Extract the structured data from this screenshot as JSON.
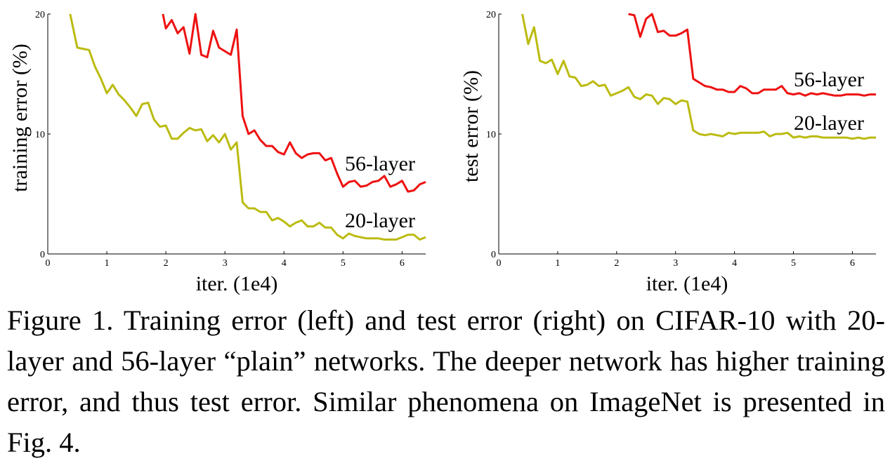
{
  "caption": "Figure 1. Training error (left) and test error (right) on CIFAR-10 with 20-layer and 56-layer “plain” networks. The deeper network has higher training error, and thus test error. Similar phenomena on ImageNet is presented in Fig. 4.",
  "colors": {
    "layer56": "#ee1111",
    "layer20": "#bbbb11"
  },
  "chart_data": [
    {
      "type": "line",
      "title": "",
      "xlabel": "iter. (1e4)",
      "ylabel": "training error (%)",
      "xlim": [
        0,
        6.4
      ],
      "ylim": [
        0,
        20
      ],
      "xticks": [
        "0",
        "1",
        "2",
        "3",
        "4",
        "5",
        "6"
      ],
      "yticks": [
        "0",
        "10",
        "20"
      ],
      "grid": false,
      "legend": "inline labels next to curves",
      "series": [
        {
          "name": "56-layer",
          "color": "#ee1111",
          "x": [
            1.95,
            2.0,
            2.1,
            2.2,
            2.3,
            2.4,
            2.5,
            2.6,
            2.7,
            2.8,
            2.9,
            3.0,
            3.1,
            3.2,
            3.3,
            3.4,
            3.5,
            3.6,
            3.7,
            3.8,
            3.9,
            4.0,
            4.1,
            4.2,
            4.3,
            4.4,
            4.5,
            4.6,
            4.7,
            4.8,
            4.9,
            5.0,
            5.1,
            5.2,
            5.3,
            5.4,
            5.5,
            5.6,
            5.7,
            5.8,
            5.9,
            6.0,
            6.1,
            6.2,
            6.3,
            6.4
          ],
          "y": [
            20.0,
            18.8,
            19.5,
            18.4,
            18.9,
            16.7,
            20.0,
            16.6,
            16.4,
            18.6,
            17.2,
            16.9,
            16.6,
            18.7,
            11.5,
            10.0,
            10.3,
            9.5,
            9.0,
            9.0,
            8.5,
            8.3,
            9.3,
            8.4,
            8.0,
            8.3,
            8.4,
            8.4,
            7.8,
            8.0,
            6.7,
            5.6,
            6.0,
            6.1,
            5.6,
            5.7,
            6.0,
            6.1,
            6.5,
            5.6,
            5.8,
            6.1,
            5.2,
            5.3,
            5.8,
            6.0
          ]
        },
        {
          "name": "20-layer",
          "color": "#bbbb11",
          "x": [
            0.38,
            0.5,
            0.6,
            0.7,
            0.8,
            0.9,
            1.0,
            1.1,
            1.2,
            1.3,
            1.4,
            1.5,
            1.6,
            1.7,
            1.8,
            1.9,
            2.0,
            2.1,
            2.2,
            2.3,
            2.4,
            2.5,
            2.6,
            2.7,
            2.8,
            2.9,
            3.0,
            3.1,
            3.2,
            3.3,
            3.4,
            3.5,
            3.6,
            3.7,
            3.8,
            3.9,
            4.0,
            4.1,
            4.2,
            4.3,
            4.4,
            4.5,
            4.6,
            4.7,
            4.8,
            4.9,
            5.0,
            5.1,
            5.2,
            5.3,
            5.4,
            5.5,
            5.6,
            5.7,
            5.8,
            5.9,
            6.0,
            6.1,
            6.2,
            6.3,
            6.4
          ],
          "y": [
            20.0,
            17.2,
            17.1,
            17.0,
            15.6,
            14.6,
            13.4,
            14.1,
            13.3,
            12.8,
            12.2,
            11.5,
            12.5,
            12.6,
            11.2,
            10.6,
            10.7,
            9.6,
            9.6,
            10.1,
            10.5,
            10.3,
            10.4,
            9.4,
            9.9,
            9.3,
            10.0,
            8.7,
            9.3,
            4.3,
            3.8,
            3.8,
            3.5,
            3.5,
            2.8,
            3.0,
            2.7,
            2.3,
            2.6,
            2.8,
            2.3,
            2.3,
            2.6,
            2.2,
            2.2,
            1.6,
            1.3,
            1.7,
            1.5,
            1.4,
            1.3,
            1.3,
            1.3,
            1.2,
            1.2,
            1.2,
            1.4,
            1.6,
            1.6,
            1.2,
            1.4
          ]
        }
      ]
    },
    {
      "type": "line",
      "title": "",
      "xlabel": "iter. (1e4)",
      "ylabel": "test error (%)",
      "xlim": [
        0,
        6.4
      ],
      "ylim": [
        0,
        20
      ],
      "xticks": [
        "0",
        "1",
        "2",
        "3",
        "4",
        "5",
        "6"
      ],
      "yticks": [
        "0",
        "10",
        "20"
      ],
      "grid": false,
      "legend": "inline labels next to curves",
      "series": [
        {
          "name": "56-layer",
          "color": "#ee1111",
          "x": [
            2.2,
            2.3,
            2.4,
            2.5,
            2.6,
            2.7,
            2.8,
            2.9,
            3.0,
            3.1,
            3.2,
            3.3,
            3.4,
            3.5,
            3.6,
            3.7,
            3.8,
            3.9,
            4.0,
            4.1,
            4.2,
            4.3,
            4.4,
            4.5,
            4.6,
            4.7,
            4.8,
            4.9,
            5.0,
            5.1,
            5.2,
            5.3,
            5.4,
            5.5,
            5.6,
            5.7,
            5.8,
            5.9,
            6.0,
            6.1,
            6.2,
            6.3,
            6.4
          ],
          "y": [
            20.0,
            19.9,
            18.1,
            19.6,
            20.0,
            18.5,
            18.6,
            18.2,
            18.2,
            18.4,
            18.7,
            14.6,
            14.3,
            14.0,
            13.9,
            13.7,
            13.7,
            13.5,
            13.5,
            14.0,
            13.8,
            13.4,
            13.4,
            13.7,
            13.7,
            13.7,
            14.0,
            13.4,
            13.3,
            13.4,
            13.2,
            13.4,
            13.3,
            13.4,
            13.3,
            13.2,
            13.2,
            13.3,
            13.3,
            13.3,
            13.2,
            13.3,
            13.3
          ]
        },
        {
          "name": "20-layer",
          "color": "#bbbb11",
          "x": [
            0.4,
            0.5,
            0.6,
            0.7,
            0.8,
            0.9,
            1.0,
            1.1,
            1.2,
            1.3,
            1.4,
            1.5,
            1.6,
            1.7,
            1.8,
            1.9,
            2.0,
            2.1,
            2.2,
            2.3,
            2.4,
            2.5,
            2.6,
            2.7,
            2.8,
            2.9,
            3.0,
            3.1,
            3.2,
            3.3,
            3.4,
            3.5,
            3.6,
            3.7,
            3.8,
            3.9,
            4.0,
            4.1,
            4.2,
            4.3,
            4.4,
            4.5,
            4.6,
            4.7,
            4.8,
            4.9,
            5.0,
            5.1,
            5.2,
            5.3,
            5.4,
            5.5,
            5.6,
            5.7,
            5.8,
            5.9,
            6.0,
            6.1,
            6.2,
            6.3,
            6.4
          ],
          "y": [
            20.0,
            17.5,
            18.9,
            16.1,
            15.9,
            16.2,
            15.0,
            16.1,
            14.8,
            14.7,
            14.0,
            14.1,
            14.4,
            14.0,
            14.1,
            13.2,
            13.4,
            13.6,
            13.9,
            13.1,
            12.9,
            13.3,
            13.2,
            12.5,
            13.0,
            12.9,
            12.5,
            12.8,
            12.7,
            10.3,
            10.0,
            9.9,
            10.0,
            9.9,
            9.8,
            10.1,
            10.0,
            10.1,
            10.1,
            10.1,
            10.1,
            10.2,
            9.8,
            10.0,
            10.0,
            10.1,
            9.7,
            9.8,
            9.7,
            9.8,
            9.8,
            9.7,
            9.7,
            9.7,
            9.7,
            9.7,
            9.6,
            9.7,
            9.6,
            9.7,
            9.7
          ]
        }
      ]
    }
  ]
}
